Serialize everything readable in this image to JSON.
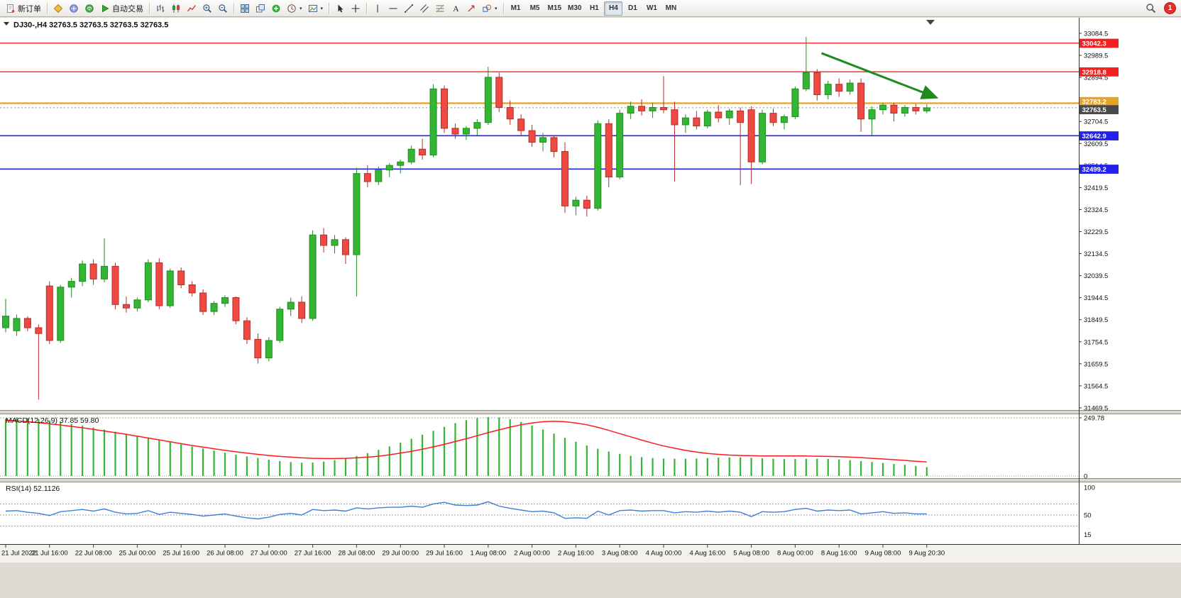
{
  "toolbar": {
    "new_order_label": "新订单",
    "autotrading_label": "自动交易",
    "timeframes": [
      "M1",
      "M5",
      "M15",
      "M30",
      "H1",
      "H4",
      "D1",
      "W1",
      "MN"
    ],
    "active_timeframe": "H4",
    "notification_count": "1"
  },
  "chart_data": {
    "type": "candlestick",
    "symbol_title": "DJ30-,H4 32763.5 32763.5 32763.5 32763.5",
    "colors": {
      "bull": "#35b535",
      "bull_stroke": "#1e8e1e",
      "bear": "#ef4a42",
      "bear_stroke": "#b52c2c",
      "macd": "#35b535",
      "signal": "#ff1a1a",
      "rsi": "#3f7fd6",
      "arrow": "#1f8b1f"
    },
    "price_axis": {
      "ticks": [
        33084.5,
        32989.5,
        32894.5,
        32799.5,
        32704.5,
        32609.5,
        32514.5,
        32419.5,
        32324.5,
        32229.5,
        32134.5,
        32039.5,
        31944.5,
        31849.5,
        31754.5,
        31659.5,
        31564.5,
        31469.5
      ]
    },
    "hlines": [
      {
        "price": 33042.3,
        "label": "33042.3",
        "color": "#f52020",
        "width": 1.3
      },
      {
        "price": 32918.8,
        "label": "32918.8",
        "color": "#f52020",
        "width": 1.3
      },
      {
        "price": 32783.2,
        "label": "32783.2",
        "color": "#e8a228",
        "width": 2.2
      },
      {
        "price": 32642.9,
        "label": "32642.9",
        "color": "#2222ee",
        "width": 1.6
      },
      {
        "price": 32499.2,
        "label": "32499.2",
        "color": "#2222ee",
        "width": 1.6
      }
    ],
    "current_price": {
      "price": 32763.5,
      "label": "32763.5",
      "badge_color": "#4a4a4a"
    },
    "candles": [
      [
        31815,
        31940,
        31795,
        31865
      ],
      [
        31802,
        31872,
        31780,
        31855
      ],
      [
        31855,
        31865,
        31800,
        31815
      ],
      [
        31815,
        31830,
        31505,
        31790
      ],
      [
        31995,
        32015,
        31745,
        31760
      ],
      [
        31760,
        32000,
        31750,
        31990
      ],
      [
        31990,
        32030,
        31945,
        32015
      ],
      [
        32015,
        32105,
        31995,
        32090
      ],
      [
        32090,
        32110,
        32000,
        32025
      ],
      [
        32025,
        32200,
        32010,
        32080
      ],
      [
        32080,
        32095,
        31895,
        31915
      ],
      [
        31915,
        31950,
        31880,
        31900
      ],
      [
        31900,
        31945,
        31885,
        31935
      ],
      [
        31935,
        32110,
        31925,
        32095
      ],
      [
        32095,
        32115,
        31895,
        31910
      ],
      [
        31910,
        32070,
        31900,
        32060
      ],
      [
        32060,
        32075,
        31985,
        32000
      ],
      [
        32000,
        32015,
        31950,
        31965
      ],
      [
        31965,
        31980,
        31870,
        31885
      ],
      [
        31885,
        31930,
        31870,
        31920
      ],
      [
        31920,
        31955,
        31905,
        31945
      ],
      [
        31945,
        31950,
        31830,
        31845
      ],
      [
        31845,
        31860,
        31745,
        31765
      ],
      [
        31765,
        31790,
        31660,
        31685
      ],
      [
        31685,
        31775,
        31670,
        31760
      ],
      [
        31760,
        31905,
        31750,
        31895
      ],
      [
        31895,
        31945,
        31865,
        31925
      ],
      [
        31925,
        31950,
        31835,
        31855
      ],
      [
        31855,
        32235,
        31845,
        32215
      ],
      [
        32215,
        32245,
        32140,
        32170
      ],
      [
        32170,
        32215,
        32135,
        32195
      ],
      [
        32195,
        32205,
        32090,
        32130
      ],
      [
        32130,
        32505,
        31950,
        32480
      ],
      [
        32480,
        32515,
        32420,
        32445
      ],
      [
        32445,
        32510,
        32430,
        32495
      ],
      [
        32495,
        32525,
        32465,
        32515
      ],
      [
        32515,
        32540,
        32480,
        32530
      ],
      [
        32530,
        32600,
        32520,
        32585
      ],
      [
        32585,
        32630,
        32540,
        32560
      ],
      [
        32560,
        32865,
        32550,
        32845
      ],
      [
        32845,
        32860,
        32655,
        32675
      ],
      [
        32675,
        32695,
        32630,
        32650
      ],
      [
        32650,
        32685,
        32625,
        32675
      ],
      [
        32675,
        32715,
        32645,
        32700
      ],
      [
        32700,
        32940,
        32690,
        32895
      ],
      [
        32895,
        32915,
        32745,
        32765
      ],
      [
        32765,
        32795,
        32690,
        32715
      ],
      [
        32715,
        32735,
        32640,
        32665
      ],
      [
        32665,
        32690,
        32595,
        32615
      ],
      [
        32615,
        32655,
        32575,
        32635
      ],
      [
        32635,
        32645,
        32550,
        32575
      ],
      [
        32575,
        32615,
        32310,
        32340
      ],
      [
        32340,
        32380,
        32300,
        32365
      ],
      [
        32365,
        32385,
        32295,
        32330
      ],
      [
        32330,
        32710,
        32320,
        32695
      ],
      [
        32695,
        32715,
        32420,
        32465
      ],
      [
        32465,
        32755,
        32455,
        32740
      ],
      [
        32740,
        32790,
        32715,
        32770
      ],
      [
        32770,
        32800,
        32730,
        32750
      ],
      [
        32750,
        32785,
        32720,
        32765
      ],
      [
        32765,
        32900,
        32740,
        32755
      ],
      [
        32755,
        32790,
        32445,
        32690
      ],
      [
        32690,
        32735,
        32655,
        32720
      ],
      [
        32720,
        32750,
        32670,
        32685
      ],
      [
        32685,
        32755,
        32675,
        32745
      ],
      [
        32745,
        32775,
        32700,
        32720
      ],
      [
        32720,
        32760,
        32690,
        32750
      ],
      [
        32750,
        32765,
        32430,
        32700
      ],
      [
        32755,
        32770,
        32435,
        32530
      ],
      [
        32530,
        32755,
        32520,
        32740
      ],
      [
        32740,
        32760,
        32685,
        32700
      ],
      [
        32700,
        32735,
        32670,
        32725
      ],
      [
        32725,
        32855,
        32715,
        32845
      ],
      [
        32845,
        33070,
        32835,
        32915
      ],
      [
        32915,
        32930,
        32795,
        32820
      ],
      [
        32820,
        32880,
        32800,
        32865
      ],
      [
        32865,
        32890,
        32810,
        32835
      ],
      [
        32835,
        32885,
        32820,
        32870
      ],
      [
        32870,
        32890,
        32660,
        32715
      ],
      [
        32715,
        32770,
        32645,
        32755
      ],
      [
        32755,
        32785,
        32735,
        32775
      ],
      [
        32775,
        32785,
        32705,
        32740
      ],
      [
        32740,
        32775,
        32725,
        32765
      ],
      [
        32765,
        32780,
        32735,
        32750
      ],
      [
        32750,
        32778,
        32740,
        32763.5
      ]
    ],
    "arrow_annotation": {
      "from": {
        "bar": 74.4,
        "price": 32999
      },
      "to": {
        "bar": 84.8,
        "price": 32809
      },
      "color": "#1f8b1f"
    },
    "macd": {
      "label": "MACD(12,26,9)",
      "values_label": "37.85 59.80",
      "ref_value": 249.78,
      "ref_label": "249.78",
      "zero_label": "0",
      "main": [
        246,
        251,
        249,
        244,
        238,
        231,
        224,
        216,
        208,
        199,
        190,
        181,
        172,
        163,
        154,
        145,
        136,
        127,
        118,
        109,
        100,
        92,
        84,
        77,
        70,
        64,
        60,
        57,
        58,
        62,
        68,
        76,
        86,
        98,
        112,
        127,
        143,
        160,
        177,
        194,
        211,
        227,
        240,
        249,
        253,
        251,
        244,
        232,
        217,
        200,
        182,
        164,
        147,
        131,
        117,
        105,
        95,
        87,
        81,
        77,
        75,
        74,
        74,
        75,
        77,
        79,
        80,
        80,
        78,
        76,
        74,
        73,
        73,
        74,
        74,
        73,
        71,
        68,
        64,
        60,
        56,
        52,
        48,
        43,
        38
      ],
      "signal": [
        240,
        237,
        233,
        229,
        224,
        219,
        213,
        207,
        200,
        193,
        186,
        179,
        171,
        163,
        155,
        147,
        139,
        131,
        124,
        117,
        110,
        104,
        98,
        93,
        88,
        84,
        81,
        78,
        76,
        75,
        75,
        76,
        78,
        81,
        85,
        91,
        98,
        106,
        115,
        125,
        136,
        148,
        160,
        173,
        186,
        198,
        210,
        220,
        228,
        233,
        235,
        233,
        228,
        220,
        209,
        196,
        182,
        168,
        154,
        141,
        129,
        119,
        110,
        103,
        97,
        93,
        90,
        88,
        87,
        86,
        86,
        86,
        86,
        86,
        85,
        84,
        83,
        81,
        79,
        76,
        73,
        70,
        67,
        63,
        60
      ]
    },
    "rsi": {
      "label": "RSI(14)",
      "value_label": "52.1126",
      "scale_labels": [
        100,
        50,
        15
      ],
      "level_lines": [
        70,
        50,
        30
      ],
      "values": [
        57,
        58,
        55,
        53,
        49,
        56,
        58,
        60,
        57,
        61,
        55,
        52,
        53,
        58,
        51,
        55,
        53,
        51,
        48,
        50,
        52,
        48,
        45,
        43,
        46,
        51,
        53,
        50,
        60,
        58,
        59,
        57,
        63,
        61,
        63,
        64,
        64,
        66,
        64,
        70,
        73,
        68,
        67,
        68,
        74,
        66,
        62,
        59,
        56,
        57,
        54,
        44,
        45,
        44,
        57,
        50,
        58,
        59,
        57,
        58,
        58,
        54,
        56,
        55,
        57,
        55,
        57,
        55,
        47,
        56,
        55,
        56,
        60,
        62,
        57,
        59,
        58,
        59,
        52,
        54,
        56,
        53,
        54,
        52,
        52.11
      ]
    },
    "time_axis": [
      "21 Jul 2022",
      "21 Jul 16:00",
      "22 Jul 08:00",
      "25 Jul 00:00",
      "25 Jul 16:00",
      "26 Jul 08:00",
      "27 Jul 00:00",
      "27 Jul 16:00",
      "28 Jul 08:00",
      "29 Jul 00:00",
      "29 Jul 16:00",
      "1 Aug 08:00",
      "2 Aug 00:00",
      "2 Aug 16:00",
      "3 Aug 08:00",
      "4 Aug 00:00",
      "4 Aug 16:00",
      "5 Aug 08:00",
      "8 Aug 00:00",
      "8 Aug 16:00",
      "9 Aug 08:00",
      "9 Aug 20:30"
    ]
  }
}
